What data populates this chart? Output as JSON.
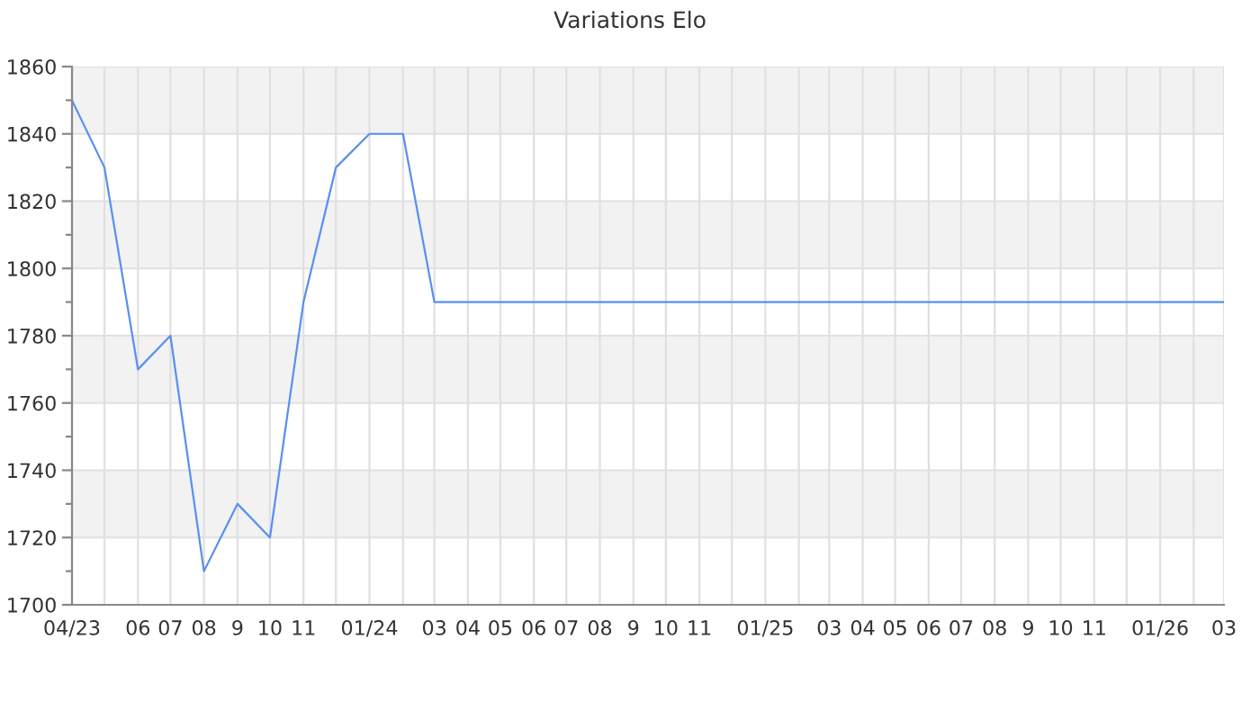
{
  "chart_data": {
    "type": "line",
    "title": "Variations Elo",
    "x": [
      "2023-04",
      "2023-05",
      "2023-06",
      "2023-07",
      "2023-08",
      "2023-09",
      "2023-10",
      "2023-11",
      "2023-12",
      "2024-01",
      "2024-02",
      "2024-03",
      "2024-04",
      "2024-05",
      "2024-06",
      "2024-07",
      "2024-08",
      "2024-09",
      "2024-10",
      "2024-11",
      "2024-12",
      "2025-01",
      "2025-02",
      "2025-03",
      "2025-04",
      "2025-05",
      "2025-06",
      "2025-07",
      "2025-08",
      "2025-09",
      "2025-10",
      "2025-11",
      "2025-12",
      "2026-01",
      "2026-02",
      "2026-03"
    ],
    "series": [
      {
        "color": "#5a8ff0",
        "values": [
          1850,
          1830,
          1770,
          1780,
          1710,
          1730,
          1720,
          1790,
          1830,
          1840,
          1840,
          1790,
          1790,
          1790,
          1790,
          1790,
          1790,
          1790,
          1790,
          1790,
          1790,
          1790,
          1790,
          1790,
          1790,
          1790,
          1790,
          1790,
          1790,
          1790,
          1790,
          1790,
          1790,
          1790,
          1790,
          1790
        ]
      }
    ],
    "xlim": [
      "2023-04",
      "2026-03"
    ],
    "xticks": [
      {
        "value": "2023-04",
        "label": "04/23"
      },
      {
        "value": "2023-05",
        "label": null
      },
      {
        "value": "2023-06",
        "label": "06"
      },
      {
        "value": "2023-07",
        "label": "07"
      },
      {
        "value": "2023-08",
        "label": "08"
      },
      {
        "value": "2023-09",
        "label": "9"
      },
      {
        "value": "2023-10",
        "label": "10"
      },
      {
        "value": "2023-11",
        "label": "11"
      },
      {
        "value": "2023-12",
        "label": null
      },
      {
        "value": "2024-01",
        "label": "01/24"
      },
      {
        "value": "2024-02",
        "label": null
      },
      {
        "value": "2024-03",
        "label": "03"
      },
      {
        "value": "2024-04",
        "label": "04"
      },
      {
        "value": "2024-05",
        "label": "05"
      },
      {
        "value": "2024-06",
        "label": "06"
      },
      {
        "value": "2024-07",
        "label": "07"
      },
      {
        "value": "2024-08",
        "label": "08"
      },
      {
        "value": "2024-09",
        "label": "9"
      },
      {
        "value": "2024-10",
        "label": "10"
      },
      {
        "value": "2024-11",
        "label": "11"
      },
      {
        "value": "2024-12",
        "label": null
      },
      {
        "value": "2025-01",
        "label": "01/25"
      },
      {
        "value": "2025-02",
        "label": null
      },
      {
        "value": "2025-03",
        "label": "03"
      },
      {
        "value": "2025-04",
        "label": "04"
      },
      {
        "value": "2025-05",
        "label": "05"
      },
      {
        "value": "2025-06",
        "label": "06"
      },
      {
        "value": "2025-07",
        "label": "07"
      },
      {
        "value": "2025-08",
        "label": "08"
      },
      {
        "value": "2025-09",
        "label": "9"
      },
      {
        "value": "2025-10",
        "label": "10"
      },
      {
        "value": "2025-11",
        "label": "11"
      },
      {
        "value": "2025-12",
        "label": null
      },
      {
        "value": "2026-01",
        "label": "01/26"
      },
      {
        "value": "2026-02",
        "label": null
      },
      {
        "value": "2026-03",
        "label": "03"
      }
    ],
    "ylim": [
      1700,
      1860
    ],
    "yticks": [
      1700,
      {
        "value": 1710,
        "label": null
      },
      1720,
      {
        "value": 1730,
        "label": null
      },
      1740,
      {
        "value": 1750,
        "label": null
      },
      1760,
      {
        "value": 1770,
        "label": null
      },
      1780,
      {
        "value": 1790,
        "label": null
      },
      1800,
      {
        "value": 1810,
        "label": null
      },
      1820,
      {
        "value": 1830,
        "label": null
      },
      1840,
      {
        "value": 1850,
        "label": null
      },
      1860
    ],
    "bands": [
      {
        "axis": "y",
        "from": 1720,
        "to": 1740,
        "color": "#f2f2f2"
      },
      {
        "axis": "y",
        "from": 1760,
        "to": 1780,
        "color": "#f2f2f2"
      },
      {
        "axis": "y",
        "from": 1800,
        "to": 1820,
        "color": "#f2f2f2"
      },
      {
        "axis": "y",
        "from": 1840,
        "to": 1860,
        "color": "#f2f2f2"
      }
    ],
    "grid": true,
    "legend": false,
    "marker": "none",
    "line_style": "solid"
  }
}
